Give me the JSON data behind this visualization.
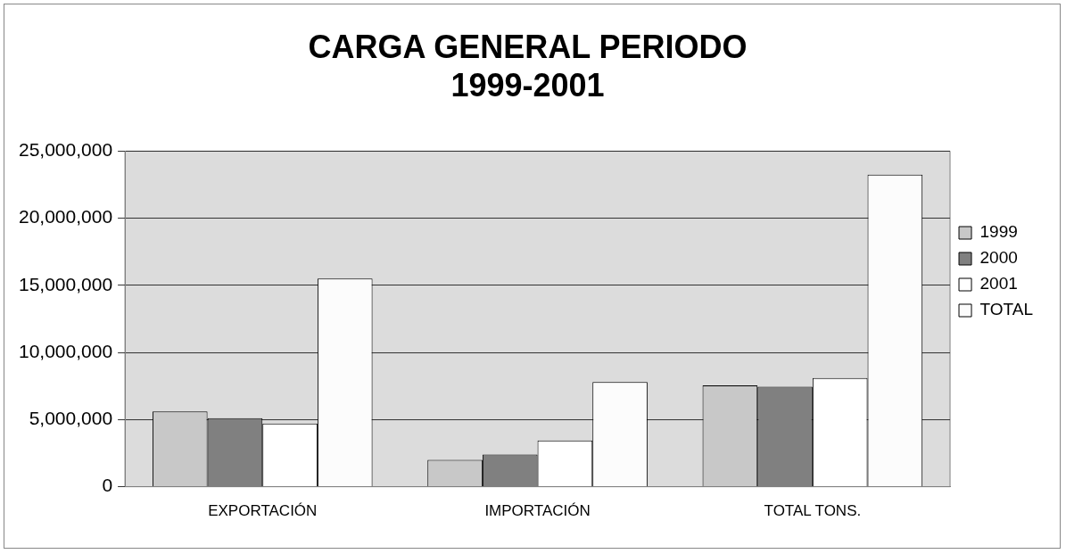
{
  "chart_data": {
    "type": "bar",
    "title": "CARGA GENERAL PERIODO\n1999-2001",
    "categories": [
      "EXPORTACIÓN",
      "IMPORTACIÓN",
      "TOTAL TONS."
    ],
    "series": [
      {
        "name": "1999",
        "color": "#c8c8c8",
        "values": [
          5600000,
          2000000,
          7550000
        ]
      },
      {
        "name": "2000",
        "color": "#808080",
        "values": [
          5100000,
          2400000,
          7450000
        ]
      },
      {
        "name": "2001",
        "color": "#ffffff",
        "values": [
          4700000,
          3450000,
          8100000
        ]
      },
      {
        "name": "TOTAL",
        "color": "#fcfcfc",
        "values": [
          15500000,
          7800000,
          23250000
        ]
      }
    ],
    "ylim": [
      0,
      25000000
    ],
    "yticks": [
      {
        "value": 0,
        "label": "0"
      },
      {
        "value": 5000000,
        "label": "5,000,000"
      },
      {
        "value": 10000000,
        "label": "10,000,000"
      },
      {
        "value": 15000000,
        "label": "15,000,000"
      },
      {
        "value": 20000000,
        "label": "20,000,000"
      },
      {
        "value": 25000000,
        "label": "25,000,000"
      }
    ],
    "grid": "y",
    "legend": "right"
  }
}
